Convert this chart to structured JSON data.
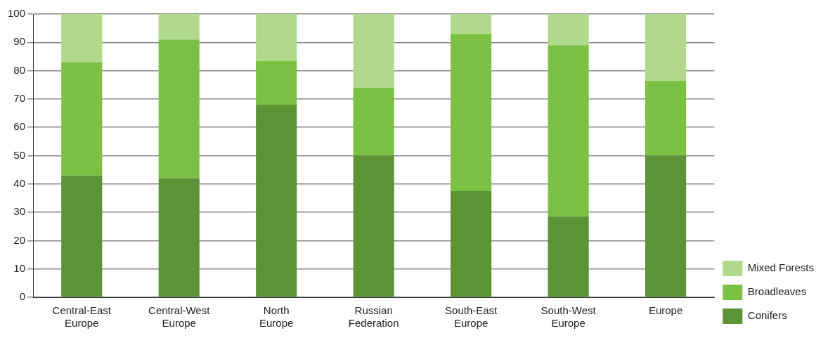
{
  "chart_data": {
    "type": "bar",
    "stacked": true,
    "categories": [
      "Central-East Europe",
      "Central-West Europe",
      "North Europe",
      "Russian Federation",
      "South-East Europe",
      "South-West Europe",
      "Europe"
    ],
    "series": [
      {
        "name": "Conifers",
        "color": "#5b9336",
        "values": [
          43,
          42,
          68,
          50,
          37.5,
          28.5,
          50
        ]
      },
      {
        "name": "Broadleaves",
        "color": "#7cc143",
        "values": [
          40,
          49,
          15.5,
          24,
          55.5,
          60.5,
          26.5
        ]
      },
      {
        "name": "Mixed Forests",
        "color": "#b1d98b",
        "values": [
          17,
          9,
          16.5,
          26,
          7,
          11,
          23.5
        ]
      }
    ],
    "ylim": [
      0,
      100
    ],
    "yticks": [
      0,
      10,
      20,
      30,
      40,
      50,
      60,
      70,
      80,
      90,
      100
    ],
    "grid": "y",
    "legend": "right"
  }
}
